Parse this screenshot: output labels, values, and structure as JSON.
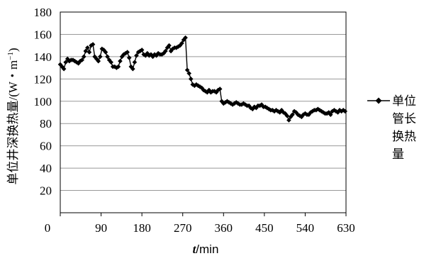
{
  "chart_data": {
    "type": "line",
    "title": "",
    "xlabel_italic": "t",
    "xlabel_rest": "/min",
    "ylabel": "单位井深换热量/(W・m",
    "ylabel_sup": "−1",
    "ylabel_close": ")",
    "xlim": [
      0,
      630
    ],
    "ylim": [
      0,
      180
    ],
    "xticks": [
      0,
      90,
      180,
      270,
      360,
      450,
      540,
      630
    ],
    "yticks": [
      20,
      40,
      60,
      80,
      100,
      120,
      140,
      160,
      180
    ],
    "x_tick_labels": [
      "0",
      "90",
      "180",
      "270",
      "360",
      "450",
      "540",
      "630"
    ],
    "y_tick_labels": [
      "20",
      "40",
      "60",
      "80",
      "100",
      "120",
      "140",
      "160",
      "180"
    ],
    "grid": "horizontal",
    "legend_position": "right",
    "legend_lines": [
      "单位",
      "管长",
      "换热",
      "量"
    ],
    "line_color": "#000000",
    "series": [
      {
        "marker": "diamond",
        "x": [
          0,
          4,
          8,
          12,
          16,
          20,
          24,
          28,
          32,
          36,
          40,
          44,
          48,
          52,
          56,
          60,
          64,
          68,
          72,
          76,
          80,
          84,
          88,
          92,
          96,
          100,
          104,
          108,
          112,
          116,
          120,
          124,
          128,
          132,
          136,
          140,
          144,
          148,
          152,
          156,
          160,
          164,
          168,
          172,
          176,
          180,
          184,
          188,
          192,
          196,
          200,
          204,
          208,
          212,
          216,
          220,
          224,
          228,
          232,
          236,
          240,
          244,
          248,
          252,
          256,
          260,
          264,
          268,
          272,
          276,
          280,
          284,
          288,
          292,
          296,
          300,
          304,
          308,
          312,
          316,
          320,
          324,
          328,
          332,
          336,
          340,
          344,
          348,
          352,
          356,
          360,
          364,
          368,
          372,
          376,
          380,
          384,
          388,
          392,
          396,
          400,
          404,
          408,
          412,
          416,
          420,
          424,
          428,
          432,
          436,
          440,
          444,
          448,
          452,
          456,
          460,
          464,
          468,
          472,
          476,
          480,
          484,
          488,
          492,
          496,
          500,
          504,
          508,
          512,
          516,
          520,
          524,
          528,
          532,
          536,
          540,
          544,
          548,
          552,
          556,
          560,
          564,
          568,
          572,
          576,
          580,
          584,
          588,
          592,
          596,
          600,
          604,
          608,
          612,
          616,
          620,
          624,
          628
        ],
        "y": [
          133,
          131,
          129,
          135,
          138,
          136,
          137,
          137,
          136,
          135,
          134,
          136,
          137,
          140,
          145,
          148,
          144,
          150,
          151,
          140,
          138,
          136,
          140,
          147,
          146,
          144,
          140,
          137,
          135,
          131,
          131,
          130,
          131,
          136,
          140,
          142,
          143,
          144,
          139,
          131,
          129,
          135,
          141,
          144,
          145,
          146,
          142,
          141,
          143,
          141,
          142,
          140,
          142,
          141,
          143,
          142,
          142,
          143,
          145,
          148,
          150,
          145,
          147,
          148,
          148,
          149,
          150,
          152,
          155,
          157,
          128,
          125,
          120,
          115,
          114,
          115,
          114,
          113,
          112,
          110,
          109,
          108,
          110,
          108,
          109,
          109,
          108,
          110,
          111,
          100,
          98,
          99,
          100,
          99,
          98,
          97,
          98,
          99,
          98,
          97,
          97,
          98,
          97,
          96,
          96,
          94,
          93,
          95,
          94,
          96,
          96,
          97,
          95,
          95,
          94,
          93,
          92,
          92,
          91,
          92,
          91,
          90,
          92,
          90,
          89,
          87,
          83,
          86,
          88,
          91,
          90,
          88,
          87,
          86,
          88,
          89,
          88,
          88,
          90,
          91,
          92,
          92,
          93,
          92,
          91,
          90,
          89,
          89,
          90,
          88,
          91,
          92,
          91,
          90,
          92,
          91,
          92,
          91
        ]
      }
    ]
  }
}
